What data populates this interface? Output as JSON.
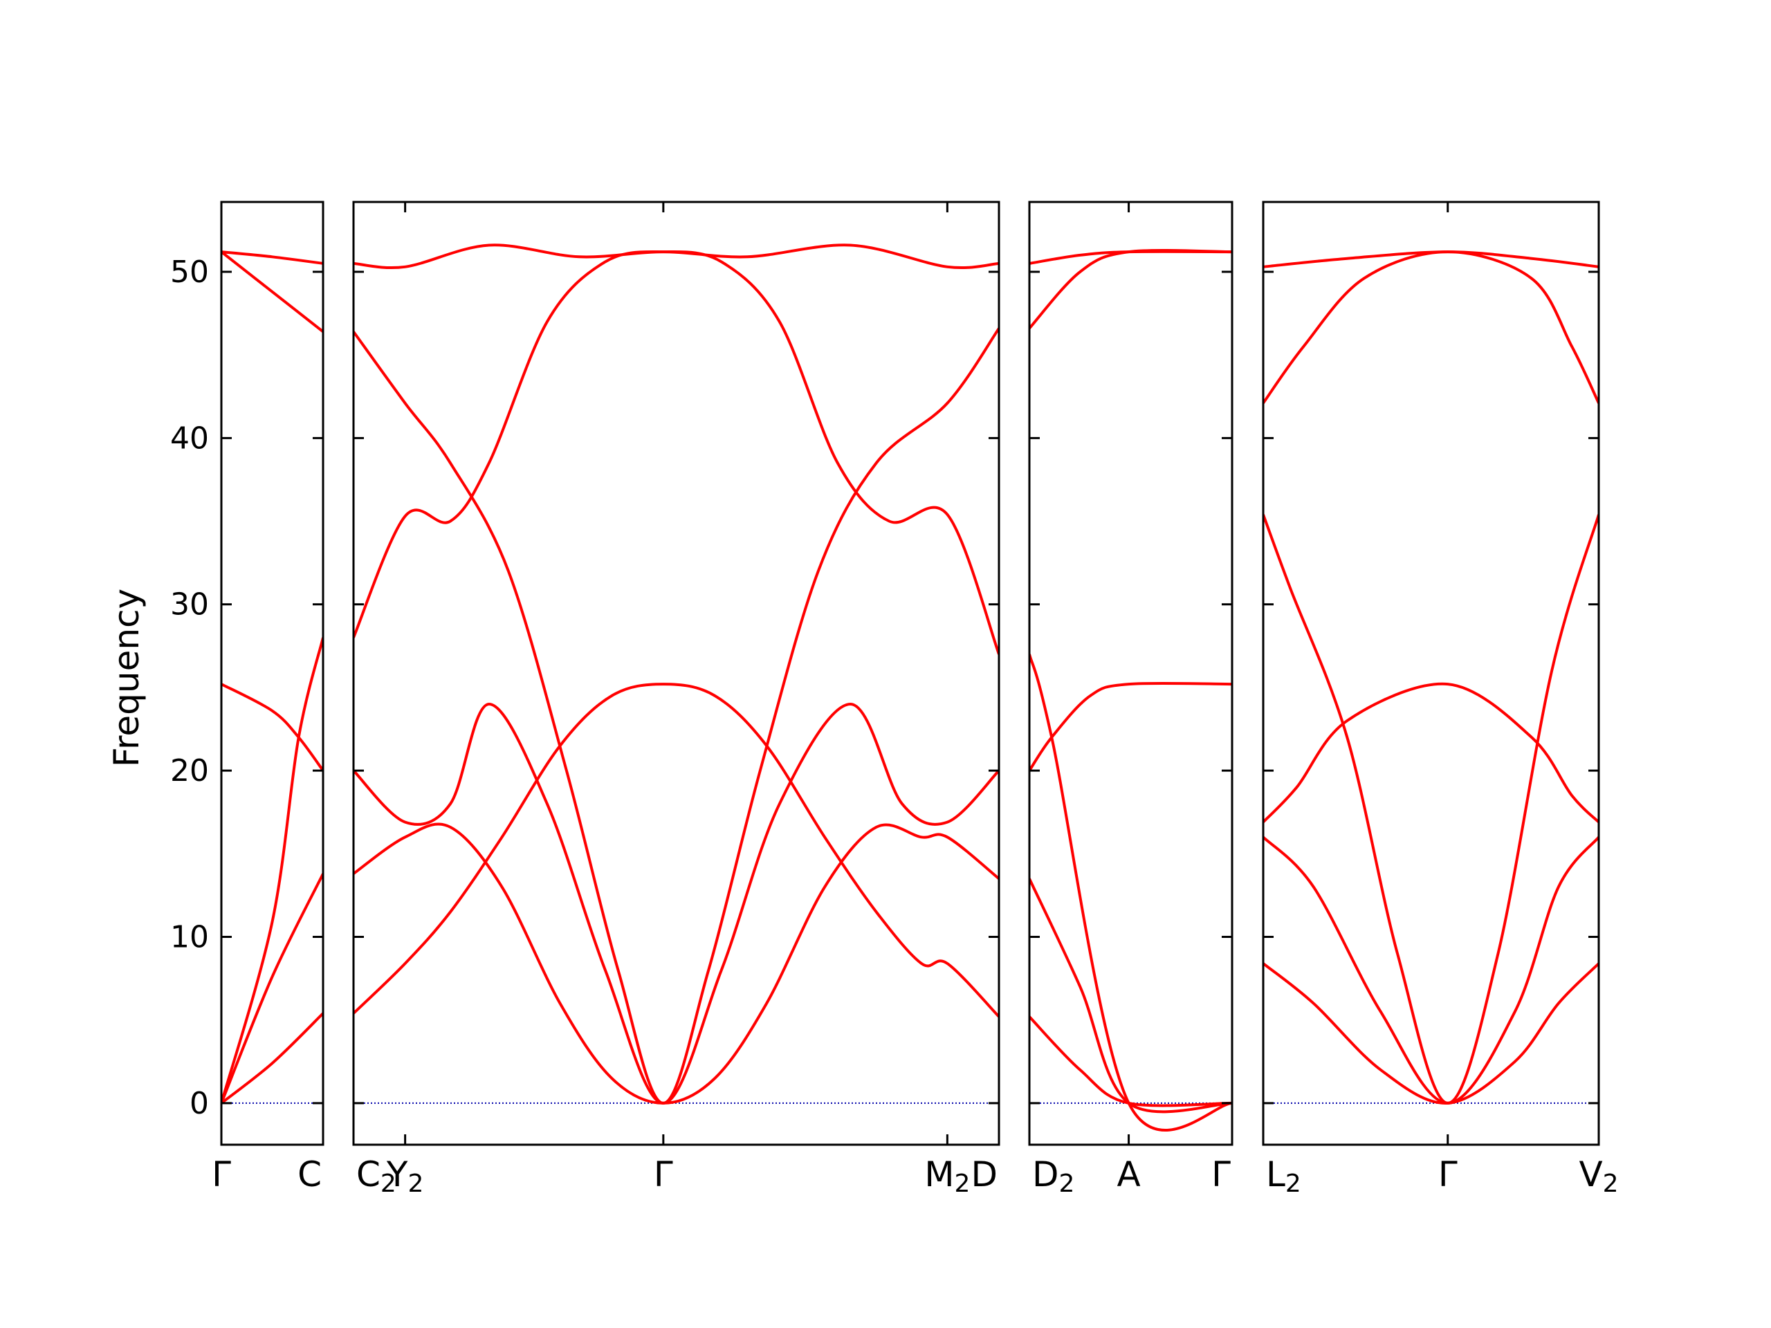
{
  "chart_data": {
    "type": "line",
    "ylabel": "Frequency",
    "ylim": [
      -2.5,
      54.2
    ],
    "yticks": [
      0,
      10,
      20,
      30,
      40,
      50
    ],
    "grid": false,
    "colors": {
      "bands": "#ff0000",
      "zero_line": "#0000aa",
      "axes": "#000000"
    },
    "panels": [
      {
        "xticks": [
          {
            "label": "Γ",
            "sub": "",
            "at": 0
          },
          {
            "label": "C",
            "sub": "",
            "at": 1
          }
        ],
        "bands": [
          {
            "points": [
              [
                0,
                0
              ],
              [
                0.5,
                2.4
              ],
              [
                1,
                5.4
              ]
            ]
          },
          {
            "points": [
              [
                0,
                0
              ],
              [
                0.5,
                7.6
              ],
              [
                1,
                13.8
              ]
            ]
          },
          {
            "points": [
              [
                0,
                0
              ],
              [
                0.5,
                10.9
              ],
              [
                0.76,
                22.0
              ],
              [
                1,
                28.0
              ]
            ]
          },
          {
            "points": [
              [
                0,
                25.2
              ],
              [
                0.5,
                23.6
              ],
              [
                0.76,
                22.0
              ],
              [
                1,
                20.0
              ]
            ]
          },
          {
            "points": [
              [
                0,
                51.2
              ],
              [
                0.5,
                48.8
              ],
              [
                1,
                46.4
              ]
            ]
          },
          {
            "points": [
              [
                0,
                51.2
              ],
              [
                0.5,
                50.9
              ],
              [
                1,
                50.5
              ]
            ]
          }
        ],
        "zero_line": true
      },
      {
        "xticks": [
          {
            "label": "C",
            "sub": "2",
            "at": 0
          },
          {
            "label": "Y",
            "sub": "2",
            "at": 0.08
          },
          {
            "label": "Γ",
            "sub": "",
            "at": 0.48
          },
          {
            "label": "M",
            "sub": "2",
            "at": 0.92
          },
          {
            "label": "D",
            "sub": "",
            "at": 1
          }
        ],
        "bands": [
          {
            "points": [
              [
                0,
                5.4
              ],
              [
                0.08,
                8.4
              ],
              [
                0.15,
                11.5
              ],
              [
                0.23,
                16.0
              ],
              [
                0.32,
                21.5
              ],
              [
                0.4,
                24.5
              ],
              [
                0.48,
                25.2
              ],
              [
                0.56,
                24.5
              ],
              [
                0.64,
                21.5
              ],
              [
                0.73,
                16.0
              ],
              [
                0.81,
                11.5
              ],
              [
                0.88,
                8.4
              ],
              [
                0.92,
                8.4
              ],
              [
                1,
                5.2
              ]
            ]
          },
          {
            "points": [
              [
                0,
                13.8
              ],
              [
                0.08,
                16.0
              ],
              [
                0.15,
                16.6
              ],
              [
                0.23,
                13.0
              ],
              [
                0.32,
                6.0
              ],
              [
                0.4,
                1.5
              ],
              [
                0.48,
                0
              ],
              [
                0.56,
                1.5
              ],
              [
                0.64,
                6.0
              ],
              [
                0.73,
                13.0
              ],
              [
                0.81,
                16.6
              ],
              [
                0.88,
                16.0
              ],
              [
                0.92,
                16.0
              ],
              [
                1,
                13.5
              ]
            ]
          },
          {
            "points": [
              [
                0,
                20.0
              ],
              [
                0.08,
                16.9
              ],
              [
                0.15,
                18.0
              ],
              [
                0.21,
                24.0
              ],
              [
                0.3,
                18.0
              ],
              [
                0.39,
                8.0
              ],
              [
                0.48,
                0
              ],
              [
                0.57,
                8.0
              ],
              [
                0.66,
                18.0
              ],
              [
                0.77,
                24.0
              ],
              [
                0.85,
                18.0
              ],
              [
                0.92,
                16.9
              ],
              [
                1,
                20.0
              ]
            ]
          },
          {
            "points": [
              [
                0,
                28.0
              ],
              [
                0.08,
                35.3
              ],
              [
                0.15,
                35.0
              ],
              [
                0.21,
                38.5
              ],
              [
                0.3,
                47.0
              ],
              [
                0.39,
                50.6
              ],
              [
                0.48,
                51.2
              ],
              [
                0.57,
                50.6
              ],
              [
                0.66,
                47.0
              ],
              [
                0.75,
                38.5
              ],
              [
                0.83,
                35.0
              ],
              [
                0.92,
                35.4
              ],
              [
                1,
                27.0
              ]
            ]
          },
          {
            "points": [
              [
                0,
                46.4
              ],
              [
                0.08,
                42.1
              ],
              [
                0.15,
                38.5
              ],
              [
                0.24,
                32.0
              ],
              [
                0.33,
                20.0
              ],
              [
                0.41,
                8.0
              ],
              [
                0.48,
                0
              ],
              [
                0.55,
                8.0
              ],
              [
                0.63,
                20.0
              ],
              [
                0.72,
                32.0
              ],
              [
                0.81,
                38.5
              ],
              [
                0.92,
                42.1
              ],
              [
                1,
                46.6
              ]
            ]
          },
          {
            "points": [
              [
                0,
                50.5
              ],
              [
                0.08,
                50.3
              ],
              [
                0.21,
                51.6
              ],
              [
                0.35,
                50.9
              ],
              [
                0.48,
                51.2
              ],
              [
                0.61,
                50.9
              ],
              [
                0.77,
                51.6
              ],
              [
                0.92,
                50.3
              ],
              [
                1,
                50.5
              ]
            ]
          }
        ],
        "zero_line": true
      },
      {
        "xticks": [
          {
            "label": "D",
            "sub": "2",
            "at": 0
          },
          {
            "label": "A",
            "sub": "",
            "at": 0.49
          },
          {
            "label": "Γ",
            "sub": "",
            "at": 1
          }
        ],
        "bands": [
          {
            "points": [
              [
                0,
                5.2
              ],
              [
                0.25,
                2.0
              ],
              [
                0.49,
                0
              ],
              [
                1,
                0
              ]
            ]
          },
          {
            "points": [
              [
                0,
                13.5
              ],
              [
                0.25,
                7.0
              ],
              [
                0.49,
                0
              ],
              [
                1,
                0
              ]
            ]
          },
          {
            "points": [
              [
                0,
                27.0
              ],
              [
                0.11,
                22.0
              ],
              [
                0.49,
                0
              ],
              [
                1,
                0
              ]
            ]
          },
          {
            "points": [
              [
                0,
                20.0
              ],
              [
                0.11,
                22.0
              ],
              [
                0.3,
                24.5
              ],
              [
                0.49,
                25.2
              ],
              [
                1,
                25.2
              ]
            ]
          },
          {
            "points": [
              [
                0,
                46.6
              ],
              [
                0.25,
                50.0
              ],
              [
                0.49,
                51.2
              ],
              [
                1,
                51.2
              ]
            ]
          },
          {
            "points": [
              [
                0,
                50.5
              ],
              [
                0.25,
                51.0
              ],
              [
                0.49,
                51.2
              ],
              [
                1,
                51.2
              ]
            ]
          }
        ],
        "zero_line": true
      },
      {
        "xticks": [
          {
            "label": "L",
            "sub": "2",
            "at": 0
          },
          {
            "label": "Γ",
            "sub": "",
            "at": 0.55
          },
          {
            "label": "V",
            "sub": "2",
            "at": 1
          }
        ],
        "bands": [
          {
            "points": [
              [
                0,
                8.4
              ],
              [
                0.15,
                6.0
              ],
              [
                0.35,
                2.0
              ],
              [
                0.55,
                0
              ],
              [
                0.75,
                2.5
              ],
              [
                0.88,
                6.0
              ],
              [
                1,
                8.4
              ]
            ]
          },
          {
            "points": [
              [
                0,
                16.0
              ],
              [
                0.15,
                13.0
              ],
              [
                0.35,
                5.5
              ],
              [
                0.55,
                0
              ],
              [
                0.75,
                5.5
              ],
              [
                0.88,
                13.0
              ],
              [
                1,
                16.0
              ]
            ]
          },
          {
            "points": [
              [
                0,
                16.9
              ],
              [
                0.1,
                19.0
              ],
              [
                0.25,
                23.0
              ],
              [
                0.55,
                25.2
              ],
              [
                0.8,
                22.0
              ],
              [
                0.92,
                18.5
              ],
              [
                1,
                16.9
              ]
            ]
          },
          {
            "points": [
              [
                0,
                35.4
              ],
              [
                0.08,
                31.0
              ],
              [
                0.25,
                22.0
              ],
              [
                0.4,
                9.0
              ],
              [
                0.55,
                0
              ],
              [
                0.7,
                9.0
              ],
              [
                0.86,
                26.0
              ],
              [
                1,
                35.4
              ]
            ]
          },
          {
            "points": [
              [
                0,
                42.1
              ],
              [
                0.12,
                45.5
              ],
              [
                0.3,
                49.6
              ],
              [
                0.55,
                51.2
              ],
              [
                0.8,
                49.6
              ],
              [
                0.92,
                45.5
              ],
              [
                1,
                42.1
              ]
            ]
          },
          {
            "points": [
              [
                0,
                50.3
              ],
              [
                0.25,
                50.8
              ],
              [
                0.55,
                51.2
              ],
              [
                0.8,
                50.8
              ],
              [
                1,
                50.3
              ]
            ]
          }
        ],
        "zero_line": true
      }
    ]
  }
}
